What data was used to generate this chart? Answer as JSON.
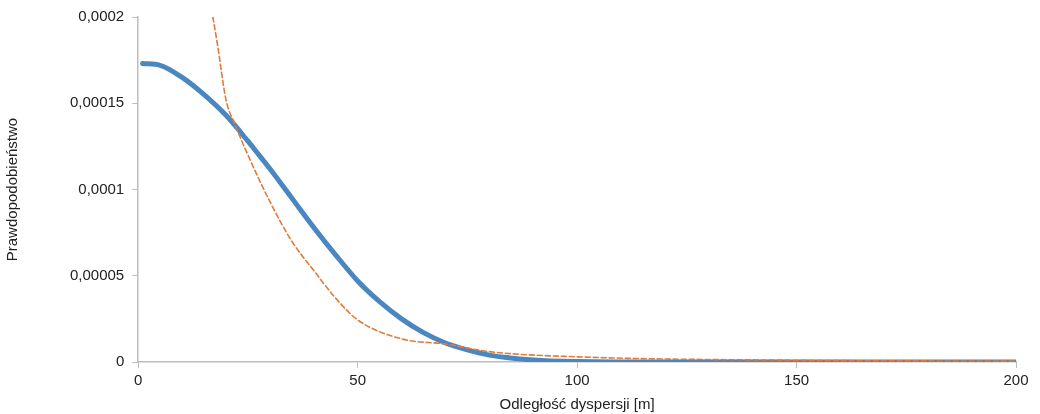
{
  "chart_data": {
    "type": "line",
    "xlabel": "Odległość dyspersji [m]",
    "ylabel": "Prawdopodobieństwo",
    "xlim": [
      0,
      200
    ],
    "xticks": [
      0,
      50,
      100,
      150,
      200
    ],
    "ylim": [
      0,
      0.0002
    ],
    "yticks": [
      {
        "value": 0,
        "label": "0"
      },
      {
        "value": 5e-05,
        "label": "0,00005"
      },
      {
        "value": 0.0001,
        "label": "0,0001"
      },
      {
        "value": 0.00015,
        "label": "0,00015"
      },
      {
        "value": 0.0002,
        "label": "0,0002"
      }
    ],
    "grid": false,
    "legend": false,
    "marker": "none",
    "series": [
      {
        "color": "#4a86c0",
        "line_style": "solid",
        "x": [
          1,
          5,
          10,
          15,
          20,
          25,
          30,
          35,
          40,
          45,
          50,
          55,
          60,
          65,
          70,
          75,
          80,
          90,
          100,
          120,
          150,
          200
        ],
        "values": [
          0.000173,
          0.000172,
          0.000165,
          0.000155,
          0.000143,
          0.000128,
          0.000112,
          9.5e-05,
          7.8e-05,
          6.2e-05,
          4.7e-05,
          3.5e-05,
          2.5e-05,
          1.7e-05,
          1.1e-05,
          7e-06,
          4e-06,
          1.2e-06,
          3e-07,
          0,
          0,
          0
        ]
      },
      {
        "color": "#e07b39",
        "line_style": "dashed",
        "x": [
          17,
          18,
          20,
          22,
          25,
          30,
          35,
          40,
          45,
          50,
          60,
          70,
          80,
          100,
          150,
          200
        ],
        "values": [
          0.0002,
          0.000185,
          0.000152,
          0.000138,
          0.00012,
          9.3e-05,
          7e-05,
          5.3e-05,
          3.7e-05,
          2.44e-05,
          1.34e-05,
          1.04e-05,
          6e-06,
          3e-06,
          1e-06,
          5e-07
        ]
      }
    ]
  }
}
